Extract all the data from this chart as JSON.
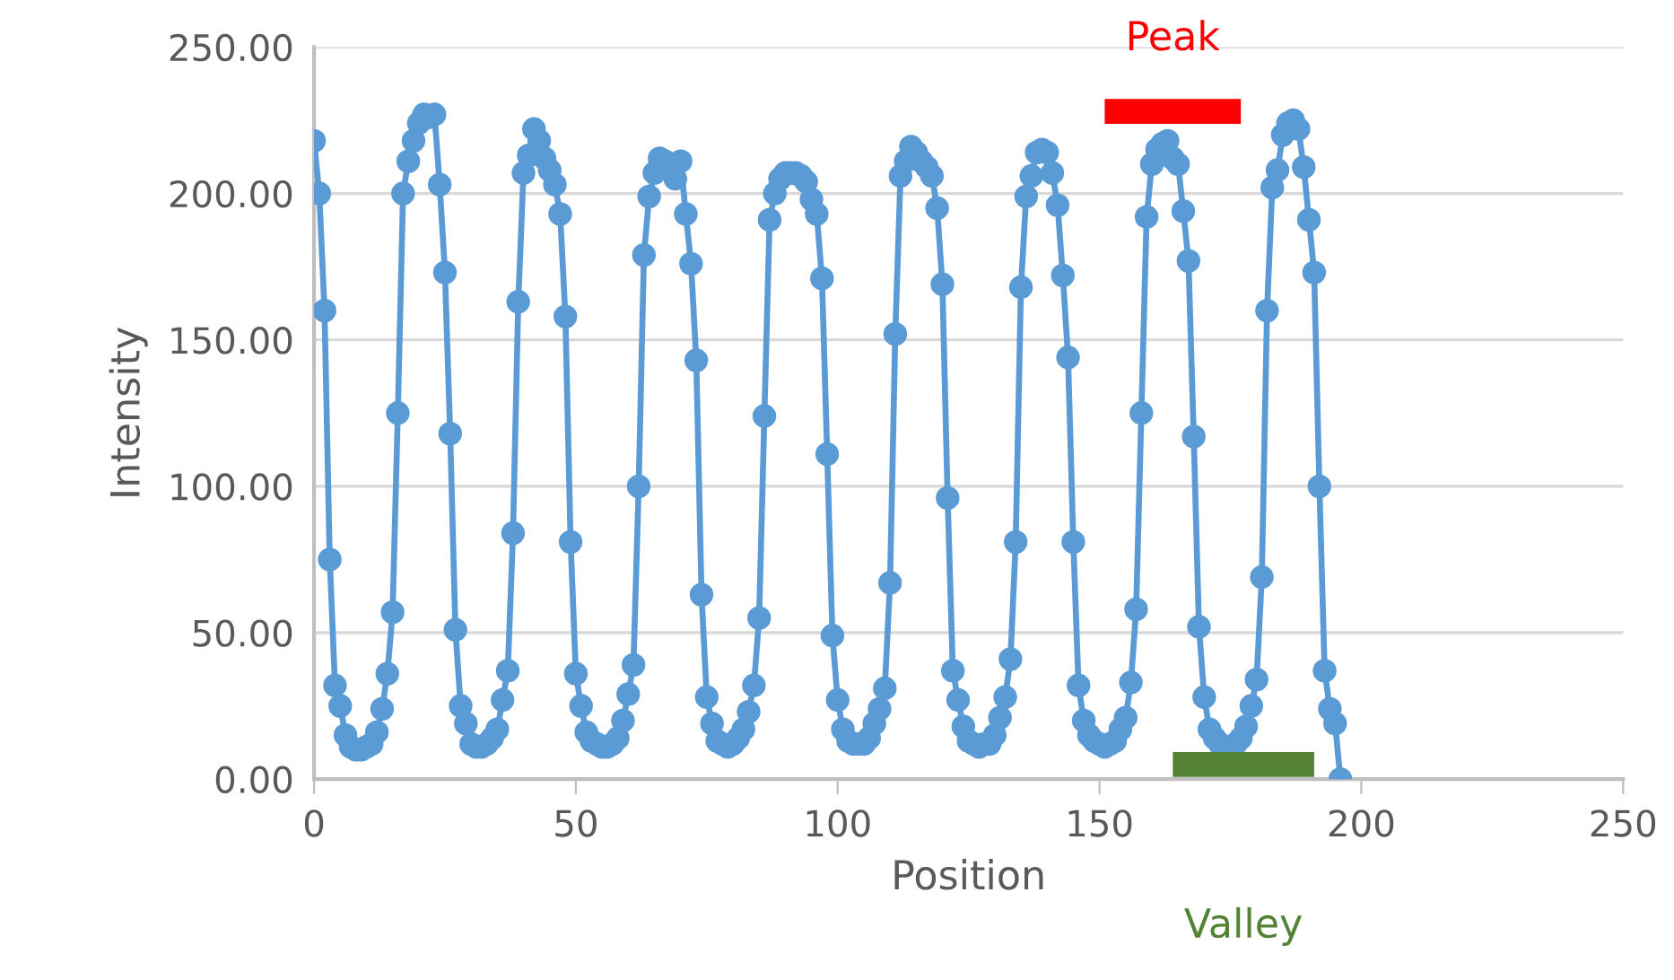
{
  "chart_data": {
    "type": "line",
    "xlabel": "Position",
    "ylabel": "Intensity",
    "x": [
      0,
      1,
      2,
      3,
      4,
      5,
      6,
      7,
      8,
      9,
      10,
      11,
      12,
      13,
      14,
      15,
      16,
      17,
      18,
      19,
      20,
      21,
      22,
      23,
      24,
      25,
      26,
      27,
      28,
      29,
      30,
      31,
      32,
      33,
      34,
      35,
      36,
      37,
      38,
      39,
      40,
      41,
      42,
      43,
      44,
      45,
      46,
      47,
      48,
      49,
      50,
      51,
      52,
      53,
      54,
      55,
      56,
      57,
      58,
      59,
      60,
      61,
      62,
      63,
      64,
      65,
      66,
      67,
      68,
      69,
      70,
      71,
      72,
      73,
      74,
      75,
      76,
      77,
      78,
      79,
      80,
      81,
      82,
      83,
      84,
      85,
      86,
      87,
      88,
      89,
      90,
      91,
      92,
      93,
      94,
      95,
      96,
      97,
      98,
      99,
      100,
      101,
      102,
      103,
      104,
      105,
      106,
      107,
      108,
      109,
      110,
      111,
      112,
      113,
      114,
      115,
      116,
      117,
      118,
      119,
      120,
      121,
      122,
      123,
      124,
      125,
      126,
      127,
      128,
      129,
      130,
      131,
      132,
      133,
      134,
      135,
      136,
      137,
      138,
      139,
      140,
      141,
      142,
      143,
      144,
      145,
      146,
      147,
      148,
      149,
      150,
      151,
      152,
      153,
      154,
      155,
      156,
      157,
      158,
      159,
      160,
      161,
      162,
      163,
      164,
      165,
      166,
      167,
      168,
      169,
      170,
      171,
      172,
      173,
      174,
      175,
      176,
      177,
      178,
      179,
      180,
      181,
      182,
      183,
      184,
      185,
      186,
      187,
      188,
      189,
      190,
      191,
      192,
      193,
      194,
      195,
      196
    ],
    "series": [
      {
        "color": "#5b9bd5",
        "values": [
          218,
          200,
          160,
          75,
          32,
          25,
          15,
          11,
          10,
          10,
          11,
          12,
          16,
          24,
          36,
          57,
          125,
          200,
          211,
          218,
          224,
          227,
          226,
          227,
          203,
          173,
          118,
          51,
          25,
          19,
          12,
          11,
          11,
          12,
          14,
          17,
          27,
          37,
          84,
          163,
          207,
          213,
          222,
          218,
          212,
          208,
          203,
          193,
          158,
          81,
          36,
          25,
          16,
          13,
          12,
          11,
          11,
          12,
          14,
          20,
          29,
          39,
          100,
          179,
          199,
          207,
          212,
          211,
          208,
          205,
          211,
          193,
          176,
          143,
          63,
          28,
          19,
          13,
          12,
          11,
          12,
          14,
          17,
          23,
          32,
          55,
          124,
          191,
          200,
          205,
          207,
          207,
          207,
          206,
          204,
          198,
          193,
          171,
          111,
          49,
          27,
          17,
          13,
          12,
          12,
          12,
          14,
          19,
          24,
          31,
          67,
          152,
          206,
          211,
          216,
          214,
          211,
          209,
          206,
          195,
          169,
          96,
          37,
          27,
          18,
          13,
          12,
          11,
          12,
          12,
          15,
          21,
          28,
          41,
          81,
          168,
          199,
          206,
          214,
          215,
          214,
          207,
          196,
          172,
          144,
          81,
          32,
          20,
          15,
          13,
          12,
          11,
          12,
          13,
          17,
          21,
          33,
          58,
          125,
          192,
          210,
          215,
          217,
          218,
          212,
          210,
          194,
          177,
          117,
          52,
          28,
          17,
          14,
          12,
          11,
          11,
          12,
          14,
          18,
          25,
          34,
          69,
          160,
          202,
          208,
          220,
          224,
          225,
          222,
          209,
          191,
          173,
          100,
          37,
          24,
          19,
          0
        ]
      },
      {
        "name": "Peak",
        "type": "line",
        "marker": "none",
        "color": "#ff0000",
        "x": [
          151,
          177
        ],
        "values": [
          228,
          228
        ]
      },
      {
        "name": "Valley",
        "type": "line",
        "marker": "none",
        "color": "#548235",
        "x": [
          164,
          191
        ],
        "values": [
          5,
          5
        ]
      }
    ],
    "xlim": [
      0,
      250
    ],
    "xticks": [
      0,
      50,
      100,
      150,
      200,
      250
    ],
    "ylim": [
      0,
      250
    ],
    "yticks": [
      {
        "value": 0,
        "label": "0.00"
      },
      {
        "value": 50,
        "label": "50.00"
      },
      {
        "value": 100,
        "label": "100.00"
      },
      {
        "value": 150,
        "label": "150.00"
      },
      {
        "value": 200,
        "label": "200.00"
      },
      {
        "value": 250,
        "label": "250.00"
      }
    ],
    "grid": "y",
    "marker": "circle",
    "line_style": "solid",
    "legend": false
  }
}
